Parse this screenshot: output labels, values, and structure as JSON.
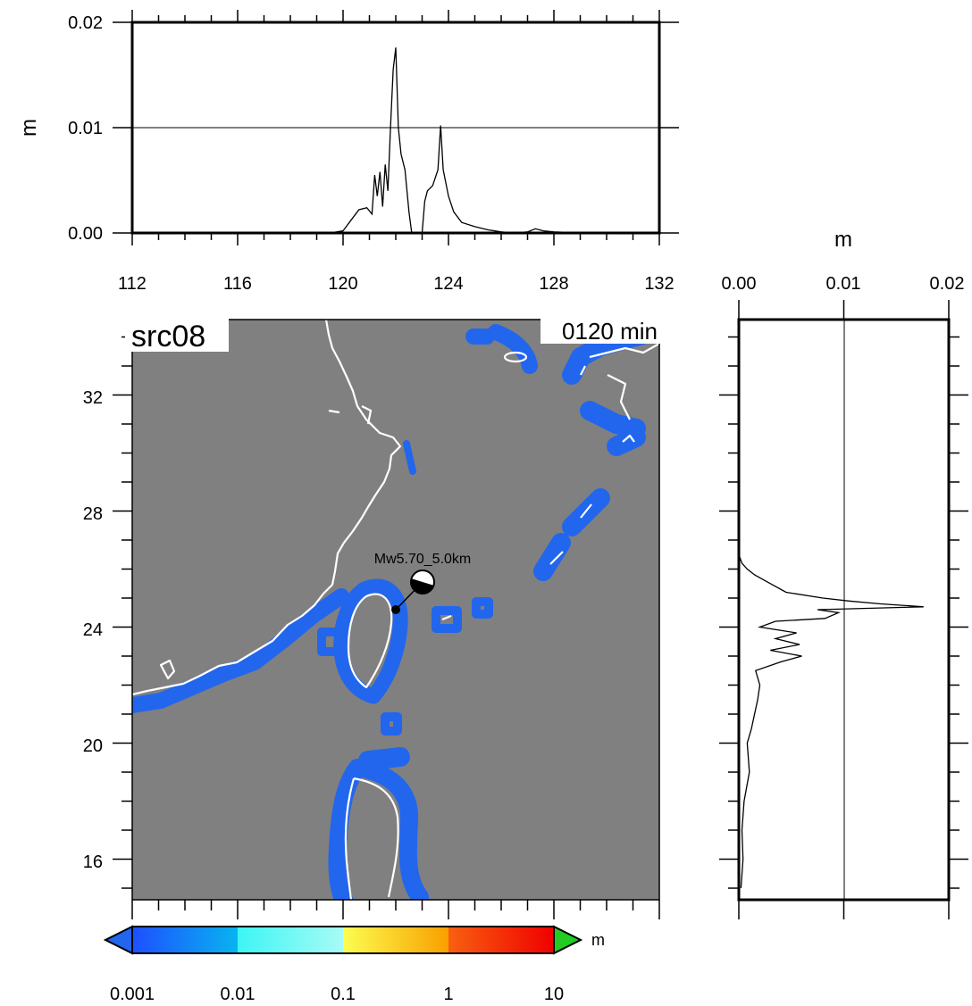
{
  "map": {
    "label": "src08",
    "time_label": "0120 min",
    "event_label": "Mw5.70_5.0km",
    "lon_range": [
      112,
      132
    ],
    "lat_range": [
      14.6,
      34.6
    ],
    "lon_ticks": [
      "112",
      "116",
      "120",
      "124",
      "128",
      "132"
    ],
    "lat_ticks": [
      "16",
      "20",
      "24",
      "28",
      "32"
    ],
    "epicenter": {
      "lon": 121.98,
      "lat": 24.7
    },
    "colors": {
      "ocean": "#808080",
      "coast": "#ffffff",
      "wave": "#2266ee",
      "frame": "#000000"
    }
  },
  "top_profile": {
    "ylabel": "m",
    "y_ticks": [
      "0.00",
      "0.01",
      "0.02"
    ],
    "y_range": [
      0,
      0.02
    ],
    "x_range": [
      112,
      132
    ],
    "x_values": [
      112,
      119.5,
      120.0,
      120.3,
      120.6,
      120.9,
      121.1,
      121.2,
      121.3,
      121.4,
      121.5,
      121.6,
      121.7,
      121.8,
      121.9,
      122.0,
      122.1,
      122.2,
      122.35,
      122.5,
      122.6,
      122.7,
      123.0,
      123.1,
      123.2,
      123.4,
      123.6,
      123.7,
      123.8,
      124.0,
      124.2,
      124.5,
      125.0,
      125.5,
      126.0,
      126.5,
      127.0,
      127.3,
      127.6,
      128.0,
      129.0,
      132.0
    ],
    "y_values": [
      0,
      0,
      0.0002,
      0.0012,
      0.0022,
      0.0024,
      0.0018,
      0.0055,
      0.0035,
      0.0058,
      0.0025,
      0.0065,
      0.004,
      0.01,
      0.0155,
      0.0176,
      0.01,
      0.0075,
      0.006,
      0.002,
      0.0001,
      0,
      0,
      0.003,
      0.004,
      0.0045,
      0.006,
      0.0102,
      0.006,
      0.0035,
      0.002,
      0.001,
      0.0006,
      0.0003,
      0.0001,
      0,
      0.0001,
      0.0004,
      0.0002,
      0.0001,
      0,
      0
    ]
  },
  "right_profile": {
    "xlabel": "m",
    "x_ticks": [
      "0.00",
      "0.01",
      "0.02"
    ],
    "x_range": [
      0,
      0.02
    ],
    "lat_values": [
      15,
      16,
      17,
      18,
      19,
      20,
      20.5,
      21,
      21.5,
      22,
      22.5,
      22.8,
      23.0,
      23.2,
      23.4,
      23.6,
      23.8,
      24.0,
      24.2,
      24.3,
      24.5,
      24.6,
      24.7,
      24.8,
      24.9,
      25.0,
      25.2,
      25.5,
      25.8,
      26.0,
      26.2,
      26.5
    ],
    "amp_values": [
      0.0002,
      0.0004,
      0.0003,
      0.0005,
      0.001,
      0.0008,
      0.0012,
      0.0015,
      0.0018,
      0.002,
      0.0016,
      0.004,
      0.006,
      0.003,
      0.0058,
      0.0035,
      0.0055,
      0.002,
      0.0035,
      0.0082,
      0.0095,
      0.0075,
      0.0176,
      0.0135,
      0.0105,
      0.008,
      0.0045,
      0.003,
      0.0015,
      0.0008,
      0.0003,
      0
    ]
  },
  "colorbar": {
    "unit": "m",
    "tick_labels": [
      "0.001",
      "0.01",
      "0.1",
      "1",
      "10"
    ],
    "stops": [
      "#1e4fff",
      "#08b4f0",
      "#3cf5f5",
      "#a8fbf5",
      "#fdfd50",
      "#fdd030",
      "#f8a000",
      "#f86010",
      "#f00000"
    ],
    "under_color": "#2266ee",
    "over_color": "#22cc22"
  }
}
